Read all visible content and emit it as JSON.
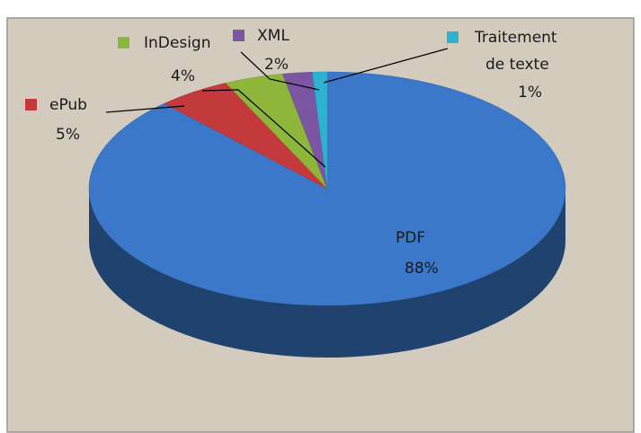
{
  "chart_data": {
    "type": "pie",
    "categories": [
      "PDF",
      "ePub",
      "InDesign",
      "XML",
      "Traitement de texte"
    ],
    "values": [
      88,
      5,
      4,
      2,
      1
    ],
    "value_labels": [
      "88%",
      "5%",
      "4%",
      "2%",
      "1%"
    ],
    "colors": [
      "#3b78c9",
      "#c4393b",
      "#8db63a",
      "#7c56a2",
      "#2db3d2"
    ],
    "style": "3d"
  }
}
